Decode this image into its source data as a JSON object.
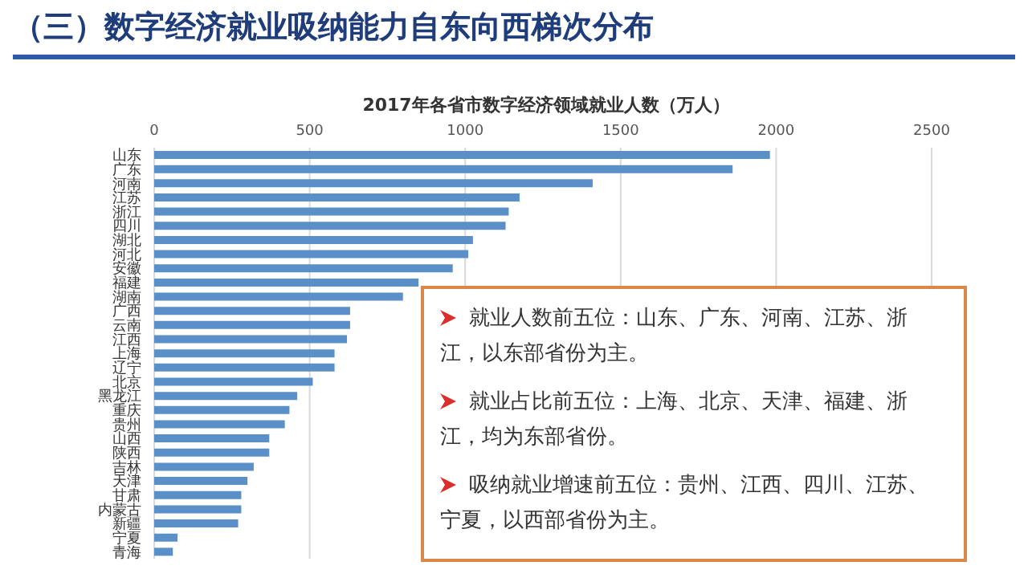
{
  "chart_data": {
    "type": "bar",
    "orientation": "horizontal",
    "title": "（三）数字经济就业吸纳能力自东向西梯次分布",
    "subtitle": "2017年各省市数字经济领域就业人数（万人）",
    "categories": [
      "山东",
      "广东",
      "河南",
      "江苏",
      "浙江",
      "四川",
      "湖北",
      "河北",
      "安徽",
      "福建",
      "湖南",
      "广西",
      "云南",
      "江西",
      "上海",
      "辽宁",
      "北京",
      "黑龙江",
      "重庆",
      "贵州",
      "山西",
      "陕西",
      "吉林",
      "天津",
      "甘肃",
      "内蒙古",
      "新疆",
      "宁夏",
      "青海"
    ],
    "values": [
      1980,
      1860,
      1410,
      1175,
      1140,
      1130,
      1025,
      1010,
      960,
      850,
      800,
      630,
      630,
      620,
      580,
      580,
      510,
      460,
      435,
      420,
      370,
      370,
      320,
      300,
      280,
      280,
      270,
      75,
      60
    ],
    "color": "#5b8fc7",
    "xlim": [
      0,
      2500
    ],
    "xticks": [
      0,
      500,
      1000,
      1500,
      2000,
      2500
    ],
    "grid": "x",
    "legend": false,
    "annotations": [
      "就业人数前五位：山东、广东、河南、江苏、浙江，以东部省份为主。",
      "就业占比前五位：上海、北京、天津、福建、浙江，均为东部省份。",
      "吸纳就业增速前五位：贵州、江西、四川、江苏、宁夏，以西部省份为主。"
    ]
  }
}
